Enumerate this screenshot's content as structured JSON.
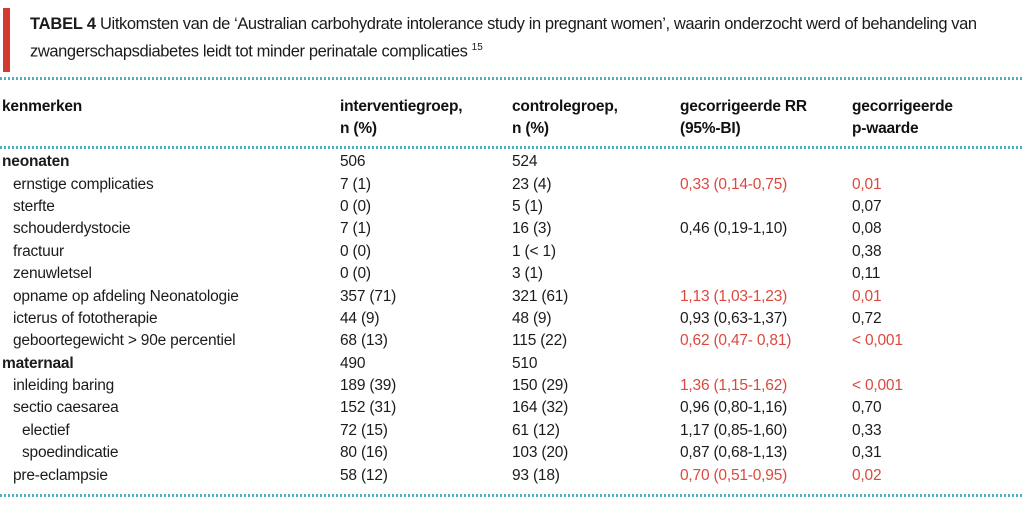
{
  "title": {
    "label": "TABEL 4",
    "line1": "Uitkomsten van de ‘Australian carbohydrate intolerance study in pregnant women’, waarin onderzocht werd of behandeling van",
    "line2": "zwangerschapsdiabetes leidt tot minder perinatale complicaties",
    "reference": "15"
  },
  "colors": {
    "accent_red_bar": "#d43a30",
    "highlight_red": "#dd483e",
    "divider_teal": "#4fb0c4",
    "text": "#1b1b1b"
  },
  "table": {
    "columns": [
      {
        "line1": "kenmerken",
        "line2": ""
      },
      {
        "line1": "interventiegroep,",
        "line2": "n (%)"
      },
      {
        "line1": "controlegroep,",
        "line2": "n (%)"
      },
      {
        "line1": "gecorrigeerde RR",
        "line2": "(95%-BI)"
      },
      {
        "line1": "gecorrigeerde",
        "line2": "p-waarde"
      }
    ],
    "rows": [
      {
        "label": "neonaten",
        "indent": 0,
        "bold": true,
        "interventie": "506",
        "controle": "524",
        "rr": "",
        "p": "",
        "highlight": false
      },
      {
        "label": "ernstige complicaties",
        "indent": 1,
        "bold": false,
        "interventie": "7 (1)",
        "controle": "23 (4)",
        "rr": "0,33 (0,14-0,75)",
        "p": "0,01",
        "highlight": true
      },
      {
        "label": "sterfte",
        "indent": 1,
        "bold": false,
        "interventie": "0 (0)",
        "controle": "5 (1)",
        "rr": "",
        "p": "0,07",
        "highlight": false
      },
      {
        "label": "schouderdystocie",
        "indent": 1,
        "bold": false,
        "interventie": "7 (1)",
        "controle": "16 (3)",
        "rr": "0,46 (0,19-1,10)",
        "p": "0,08",
        "highlight": false
      },
      {
        "label": "fractuur",
        "indent": 1,
        "bold": false,
        "interventie": "0 (0)",
        "controle": "1 (< 1)",
        "rr": "",
        "p": "0,38",
        "highlight": false
      },
      {
        "label": "zenuwletsel",
        "indent": 1,
        "bold": false,
        "interventie": "0 (0)",
        "controle": "3 (1)",
        "rr": "",
        "p": "0,11",
        "highlight": false
      },
      {
        "label": "opname op afdeling Neonatologie",
        "indent": 1,
        "bold": false,
        "interventie": "357 (71)",
        "controle": "321 (61)",
        "rr": "1,13 (1,03-1,23)",
        "p": "0,01",
        "highlight": true
      },
      {
        "label": "icterus of fototherapie",
        "indent": 1,
        "bold": false,
        "interventie": "44 (9)",
        "controle": "48 (9)",
        "rr": "0,93 (0,63-1,37)",
        "p": "0,72",
        "highlight": false
      },
      {
        "label": "geboortegewicht > 90e percentiel",
        "indent": 1,
        "bold": false,
        "interventie": "68 (13)",
        "controle": "115 (22)",
        "rr": "0,62 (0,47- 0,81)",
        "p": "< 0,001",
        "highlight": true
      },
      {
        "label": "maternaal",
        "indent": 0,
        "bold": true,
        "interventie": "490",
        "controle": "510",
        "rr": "",
        "p": "",
        "highlight": false
      },
      {
        "label": "inleiding baring",
        "indent": 1,
        "bold": false,
        "interventie": "189 (39)",
        "controle": "150 (29)",
        "rr": "1,36 (1,15-1,62)",
        "p": "< 0,001",
        "highlight": true
      },
      {
        "label": "sectio caesarea",
        "indent": 1,
        "bold": false,
        "interventie": "152 (31)",
        "controle": "164 (32)",
        "rr": "0,96 (0,80-1,16)",
        "p": "0,70",
        "highlight": false
      },
      {
        "label": "electief",
        "indent": 2,
        "bold": false,
        "interventie": "72 (15)",
        "controle": "61 (12)",
        "rr": "1,17 (0,85-1,60)",
        "p": "0,33",
        "highlight": false
      },
      {
        "label": "spoedindicatie",
        "indent": 2,
        "bold": false,
        "interventie": "80 (16)",
        "controle": "103 (20)",
        "rr": "0,87 (0,68-1,13)",
        "p": "0,31",
        "highlight": false
      },
      {
        "label": "pre-eclampsie",
        "indent": 1,
        "bold": false,
        "interventie": "58 (12)",
        "controle": "93 (18)",
        "rr": "0,70 (0,51-0,95)",
        "p": "0,02",
        "highlight": true
      }
    ]
  }
}
